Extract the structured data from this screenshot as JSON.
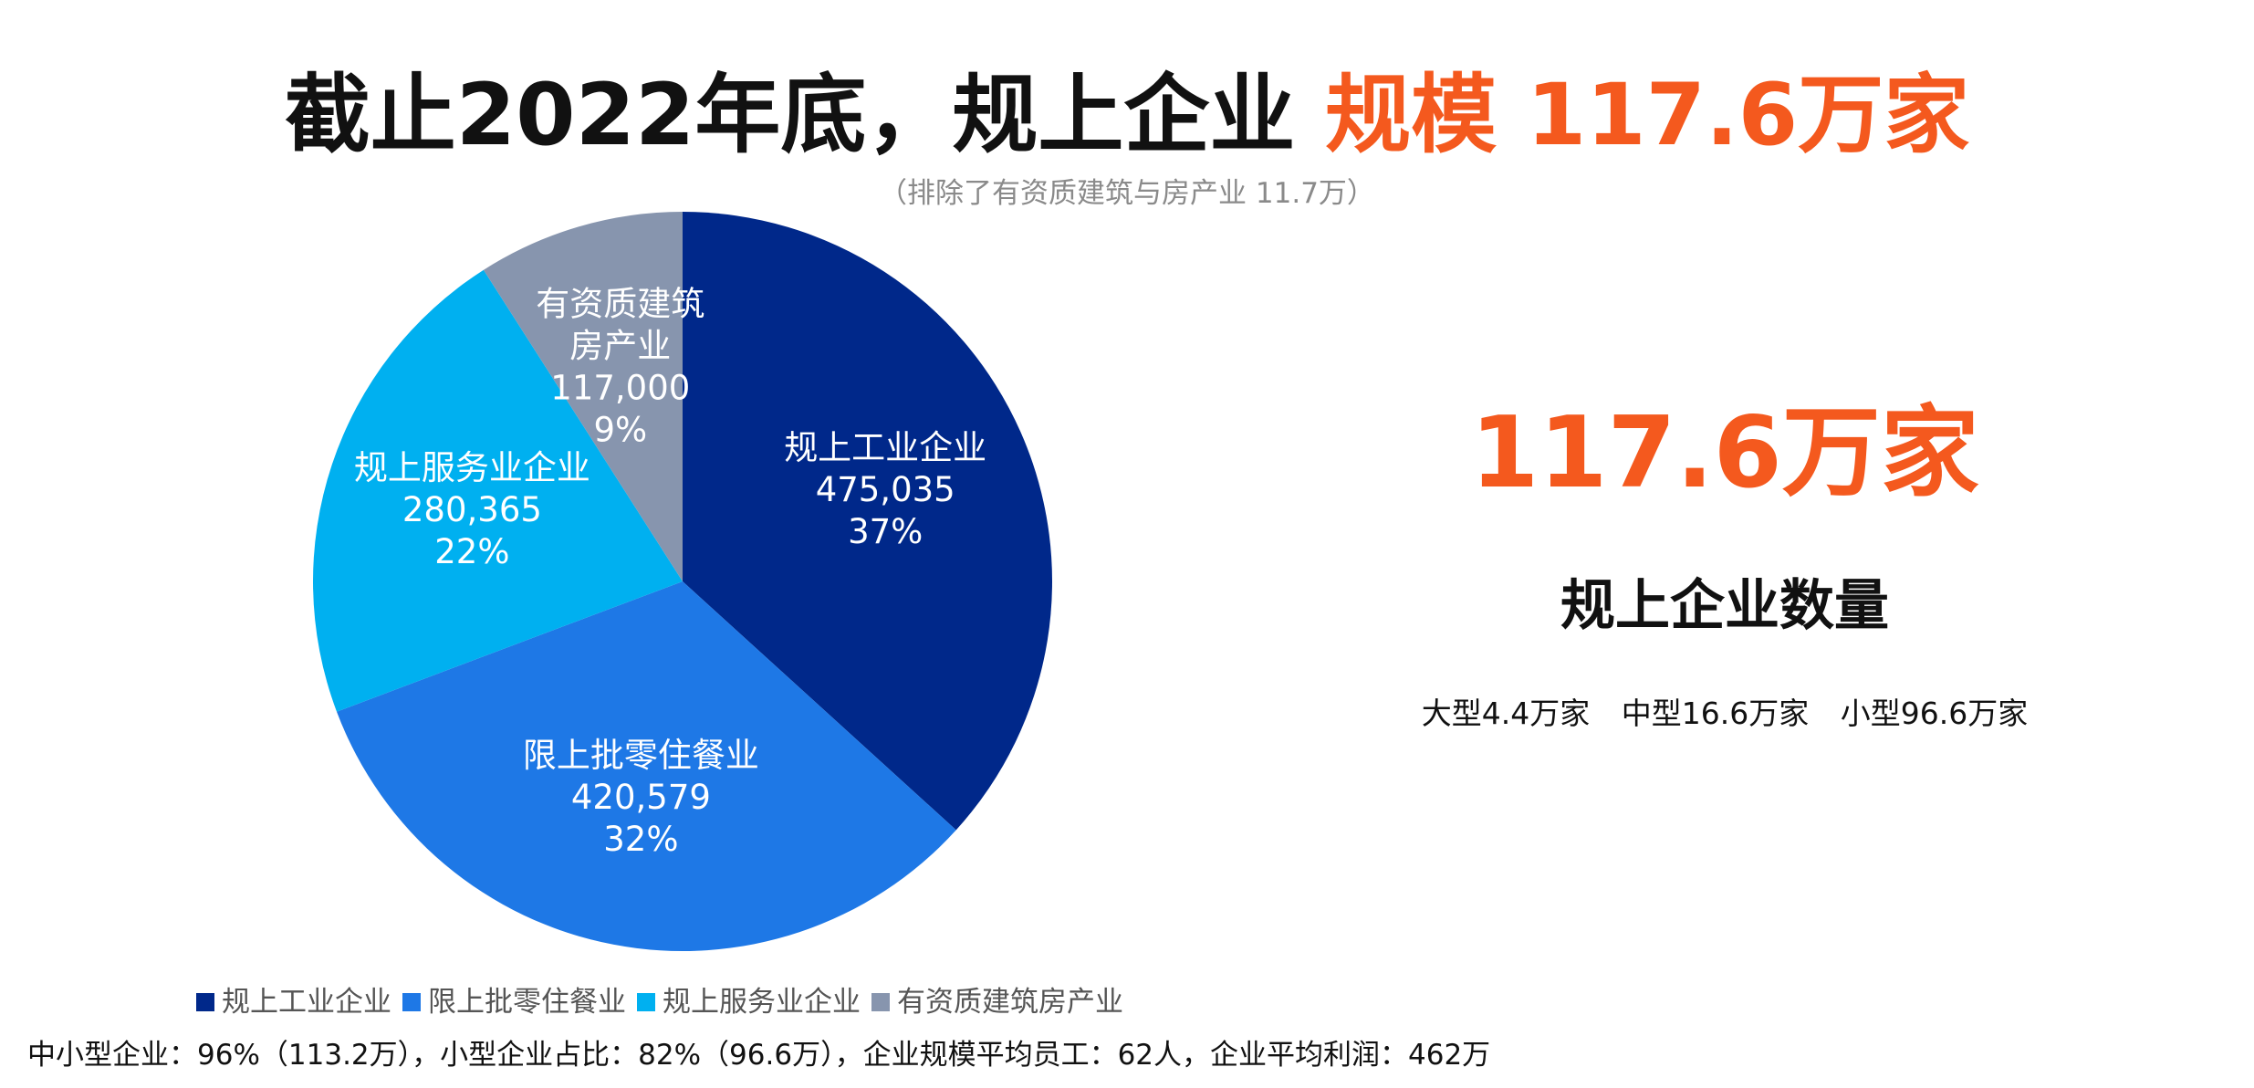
{
  "title": {
    "prefix": "截止2022年底，规上企业",
    "highlight": "规模 117.6万家"
  },
  "subtitle": "（排除了有资质建筑与房产业 11.7万）",
  "colors": {
    "accent": "#f4591e",
    "industrial": "#00288a",
    "retail": "#1e78e6",
    "services": "#00b0f0",
    "construction": "#8795ae"
  },
  "chart_data": {
    "type": "pie",
    "categories": [
      "规上工业企业",
      "限上批零住餐业",
      "规上服务业企业",
      "有资质建筑房产业"
    ],
    "series": [
      {
        "values": [
          475035,
          420579,
          280365,
          117000
        ]
      }
    ],
    "slices": [
      {
        "label": [
          "规上工业企业"
        ],
        "value_text": "475,035",
        "percent_text": "37%",
        "value": 475035,
        "color": "#00288a"
      },
      {
        "label": [
          "限上批零住餐业"
        ],
        "value_text": "420,579",
        "percent_text": "32%",
        "value": 420579,
        "color": "#1e78e6"
      },
      {
        "label": [
          "规上服务业企业"
        ],
        "value_text": "280,365",
        "percent_text": "22%",
        "value": 280365,
        "color": "#00b0f0"
      },
      {
        "label": [
          "有资质建筑",
          "房产业"
        ],
        "value_text": "117,000",
        "percent_text": "9%",
        "value": 117000,
        "color": "#8795ae"
      }
    ],
    "start_angle": "12 o'clock",
    "direction": "clockwise",
    "legend": {
      "placement": "bottom",
      "items": [
        "规上工业企业",
        "限上批零住餐业",
        "规上服务业企业",
        "有资质建筑房产业"
      ]
    }
  },
  "summary": {
    "big_number": "117.6万家",
    "label": "规上企业数量",
    "breakdown": [
      "大型4.4万家",
      "中型16.6万家",
      "小型96.6万家"
    ]
  },
  "footer": "中小型企业：96%（113.2万），小型企业占比：82%（96.6万），企业规模平均员工：62人，企业平均利润：462万"
}
